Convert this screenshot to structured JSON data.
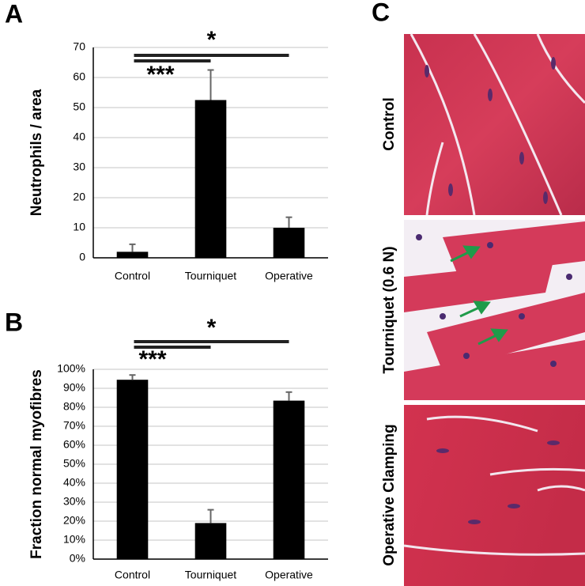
{
  "chart_data": [
    {
      "type": "bar",
      "panel": "A",
      "ylabel": "Neutrophils / area",
      "categories": [
        "Control",
        "Tourniquet",
        "Operative"
      ],
      "values": [
        2,
        52.5,
        10
      ],
      "errors": [
        2.5,
        10,
        3.5
      ],
      "color": "#000000",
      "ylim": [
        0,
        70
      ],
      "yticks": [
        0,
        10,
        20,
        30,
        40,
        50,
        60,
        70
      ],
      "grid": true,
      "annotations": [
        {
          "text": "***",
          "from": 0,
          "to": 1
        },
        {
          "text": "*",
          "from": 0,
          "to": 2
        }
      ]
    },
    {
      "type": "bar",
      "panel": "B",
      "ylabel": "Fraction normal myofibres",
      "categories": [
        "Control",
        "Tourniquet",
        "Operative"
      ],
      "values": [
        94.5,
        19,
        83.5
      ],
      "errors": [
        2.5,
        7,
        4.5
      ],
      "color": "#000000",
      "ylim": [
        0,
        100
      ],
      "yticks": [
        {
          "value": 0,
          "label": "0%"
        },
        {
          "value": 10,
          "label": "10%"
        },
        {
          "value": 20,
          "label": "20%"
        },
        {
          "value": 30,
          "label": "30%"
        },
        {
          "value": 40,
          "label": "40%"
        },
        {
          "value": 50,
          "label": "50%"
        },
        {
          "value": 60,
          "label": "60%"
        },
        {
          "value": 70,
          "label": "70%"
        },
        {
          "value": 80,
          "label": "80%"
        },
        {
          "value": 90,
          "label": "90%"
        },
        {
          "value": 100,
          "label": "100%"
        }
      ],
      "grid": true,
      "annotations": [
        {
          "text": "***",
          "from": 0,
          "to": 1
        },
        {
          "text": "*",
          "from": 0,
          "to": 2
        }
      ]
    }
  ],
  "images": {
    "panel": "C",
    "labels": [
      "Control",
      "Tourniquet (0.6 N)",
      "Operative Clamping"
    ]
  }
}
